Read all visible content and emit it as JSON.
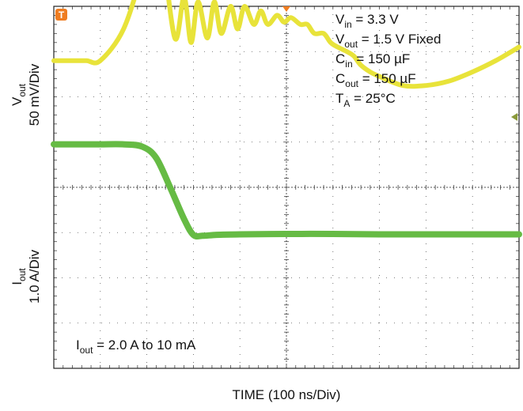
{
  "chart_data": {
    "type": "line",
    "xlabel": "TIME (100 ns/Div)",
    "x_divisions": 10,
    "y_divisions": 8,
    "grid": true,
    "trigger_marker": "T",
    "trigger_icon": "trigger-t-icon",
    "upper_channel": {
      "ylabel_main": "V",
      "ylabel_sub": "out",
      "ylabel_scale": "50 mV/Div",
      "color": "#e8e33a",
      "x": [
        0,
        0.4,
        0.7,
        1.0,
        1.5,
        1.9,
        2.1,
        2.3,
        2.6,
        2.8,
        2.95,
        3.1,
        3.3,
        3.45,
        3.6,
        3.8,
        3.95,
        4.1,
        4.3,
        4.45,
        4.6,
        4.8,
        4.95,
        5.1,
        5.3,
        5.45,
        5.6,
        5.8,
        5.95,
        6.1,
        6.3,
        6.45,
        6.6,
        6.8,
        7.0,
        7.5,
        8.0,
        8.5,
        9.0,
        9.5,
        10.0
      ],
      "y": [
        6.8,
        6.8,
        6.8,
        6.8,
        7.5,
        8.8,
        9.9,
        9.5,
        7.3,
        8.2,
        7.2,
        8.1,
        7.3,
        8.1,
        7.4,
        8.0,
        7.5,
        8.0,
        7.6,
        7.9,
        7.6,
        7.8,
        7.65,
        7.75,
        7.6,
        7.6,
        7.4,
        7.4,
        7.2,
        7.1,
        7.0,
        6.9,
        6.7,
        6.55,
        6.45,
        6.25,
        6.25,
        6.35,
        6.55,
        6.8,
        7.1
      ]
    },
    "lower_channel": {
      "ylabel_main": "I",
      "ylabel_sub": "out",
      "ylabel_scale": "1.0 A/Div",
      "color": "#66bb44",
      "x": [
        0,
        0.5,
        1.0,
        1.5,
        1.9,
        2.2,
        2.5,
        2.8,
        3.0,
        3.2,
        3.5,
        4.0,
        5.0,
        6.0,
        7.0,
        8.0,
        9.0,
        10.0
      ],
      "y": [
        4.95,
        4.95,
        4.95,
        4.95,
        4.9,
        4.65,
        4.0,
        3.3,
        2.95,
        2.93,
        2.95,
        2.96,
        2.97,
        2.97,
        2.96,
        2.96,
        2.96,
        2.96
      ],
      "annotation": {
        "main": "I",
        "sub": "out",
        "text": " = 2.0 A to 10 mA"
      }
    },
    "conditions": [
      {
        "main": "V",
        "sub": "in",
        "text": " = 3.3 V"
      },
      {
        "main": "V",
        "sub": "out",
        "text": " = 1.5 V Fixed"
      },
      {
        "main": "C",
        "sub": "in",
        "text": " = 150 µF"
      },
      {
        "main": "C",
        "sub": "out",
        "text": " = 150 µF"
      },
      {
        "main": "T",
        "sub": "A",
        "text": " = 25°C"
      }
    ]
  }
}
